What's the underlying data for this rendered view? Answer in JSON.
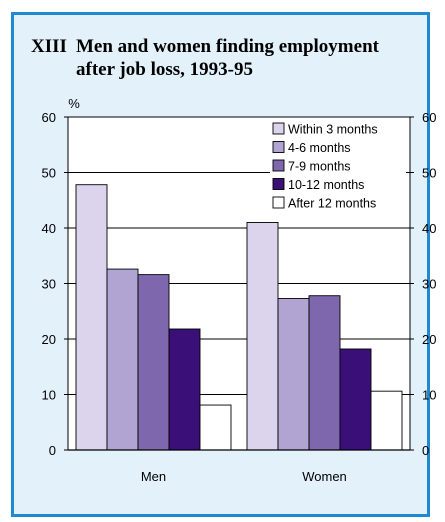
{
  "chart_data": {
    "type": "bar",
    "title_number": "XIII",
    "title": "Men and women finding employment after job loss, 1993-95",
    "unit_label": "%",
    "categories": [
      "Men",
      "Women"
    ],
    "ylim": [
      0,
      60
    ],
    "yticks": [
      "0",
      "10",
      "20",
      "30",
      "40",
      "50",
      "60"
    ],
    "grid": true,
    "legend_position": "top-right",
    "series": [
      {
        "name": "Within 3 months",
        "color": "#dcd4ec",
        "values": [
          47.8,
          41.0
        ]
      },
      {
        "name": "4-6 months",
        "color": "#b1a4d3",
        "values": [
          32.6,
          27.3
        ]
      },
      {
        "name": "7-9 months",
        "color": "#7e67ad",
        "values": [
          31.6,
          27.8
        ]
      },
      {
        "name": "10-12 months",
        "color": "#3a1078",
        "values": [
          21.8,
          18.2
        ]
      },
      {
        "name": "After 12 months",
        "color": "#ffffff",
        "values": [
          8.1,
          10.6
        ]
      }
    ]
  }
}
